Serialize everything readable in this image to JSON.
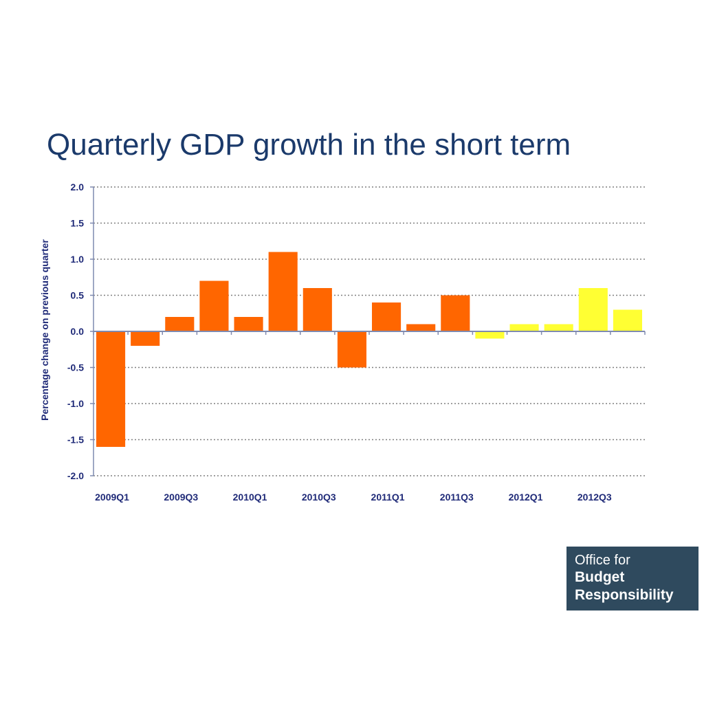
{
  "colors": {
    "title": "#1b3a6b",
    "axis_text": "#1f2a78",
    "axis_line": "#7f8ab0",
    "grid": "#7f7f7f",
    "outturn": "#ff6600",
    "forecast": "#ffff33",
    "logo_bg": "#2f4a5e"
  },
  "logo": {
    "line1": "Office for",
    "line2": "Budget",
    "line3": "Responsibility"
  },
  "chart_data": {
    "type": "bar",
    "title": "Quarterly GDP growth in the short term",
    "ylabel": "Percentage change on previous quarter",
    "xlabel": "",
    "ylim": [
      -2.0,
      2.0
    ],
    "yticks": [
      "2.0",
      "1.5",
      "1.0",
      "0.5",
      "0.0",
      "-0.5",
      "-1.0",
      "-1.5",
      "-2.0"
    ],
    "grid": true,
    "categories": [
      "2009Q1",
      "2009Q2",
      "2009Q3",
      "2009Q4",
      "2010Q1",
      "2010Q2",
      "2010Q3",
      "2010Q4",
      "2011Q1",
      "2011Q2",
      "2011Q3",
      "2011Q4",
      "2012Q1",
      "2012Q2",
      "2012Q3",
      "2012Q4"
    ],
    "category_labels": [
      "2009Q1",
      "",
      "2009Q3",
      "",
      "2010Q1",
      "",
      "2010Q3",
      "",
      "2011Q1",
      "",
      "2011Q3",
      "",
      "2012Q1",
      "",
      "2012Q3",
      ""
    ],
    "values": [
      -1.6,
      -0.2,
      0.2,
      0.7,
      0.2,
      1.1,
      0.6,
      -0.5,
      0.4,
      0.1,
      0.5,
      -0.1,
      0.1,
      0.1,
      0.6,
      0.3
    ],
    "bar_group": [
      "outturn",
      "outturn",
      "outturn",
      "outturn",
      "outturn",
      "outturn",
      "outturn",
      "outturn",
      "outturn",
      "outturn",
      "outturn",
      "forecast",
      "forecast",
      "forecast",
      "forecast",
      "forecast"
    ]
  }
}
